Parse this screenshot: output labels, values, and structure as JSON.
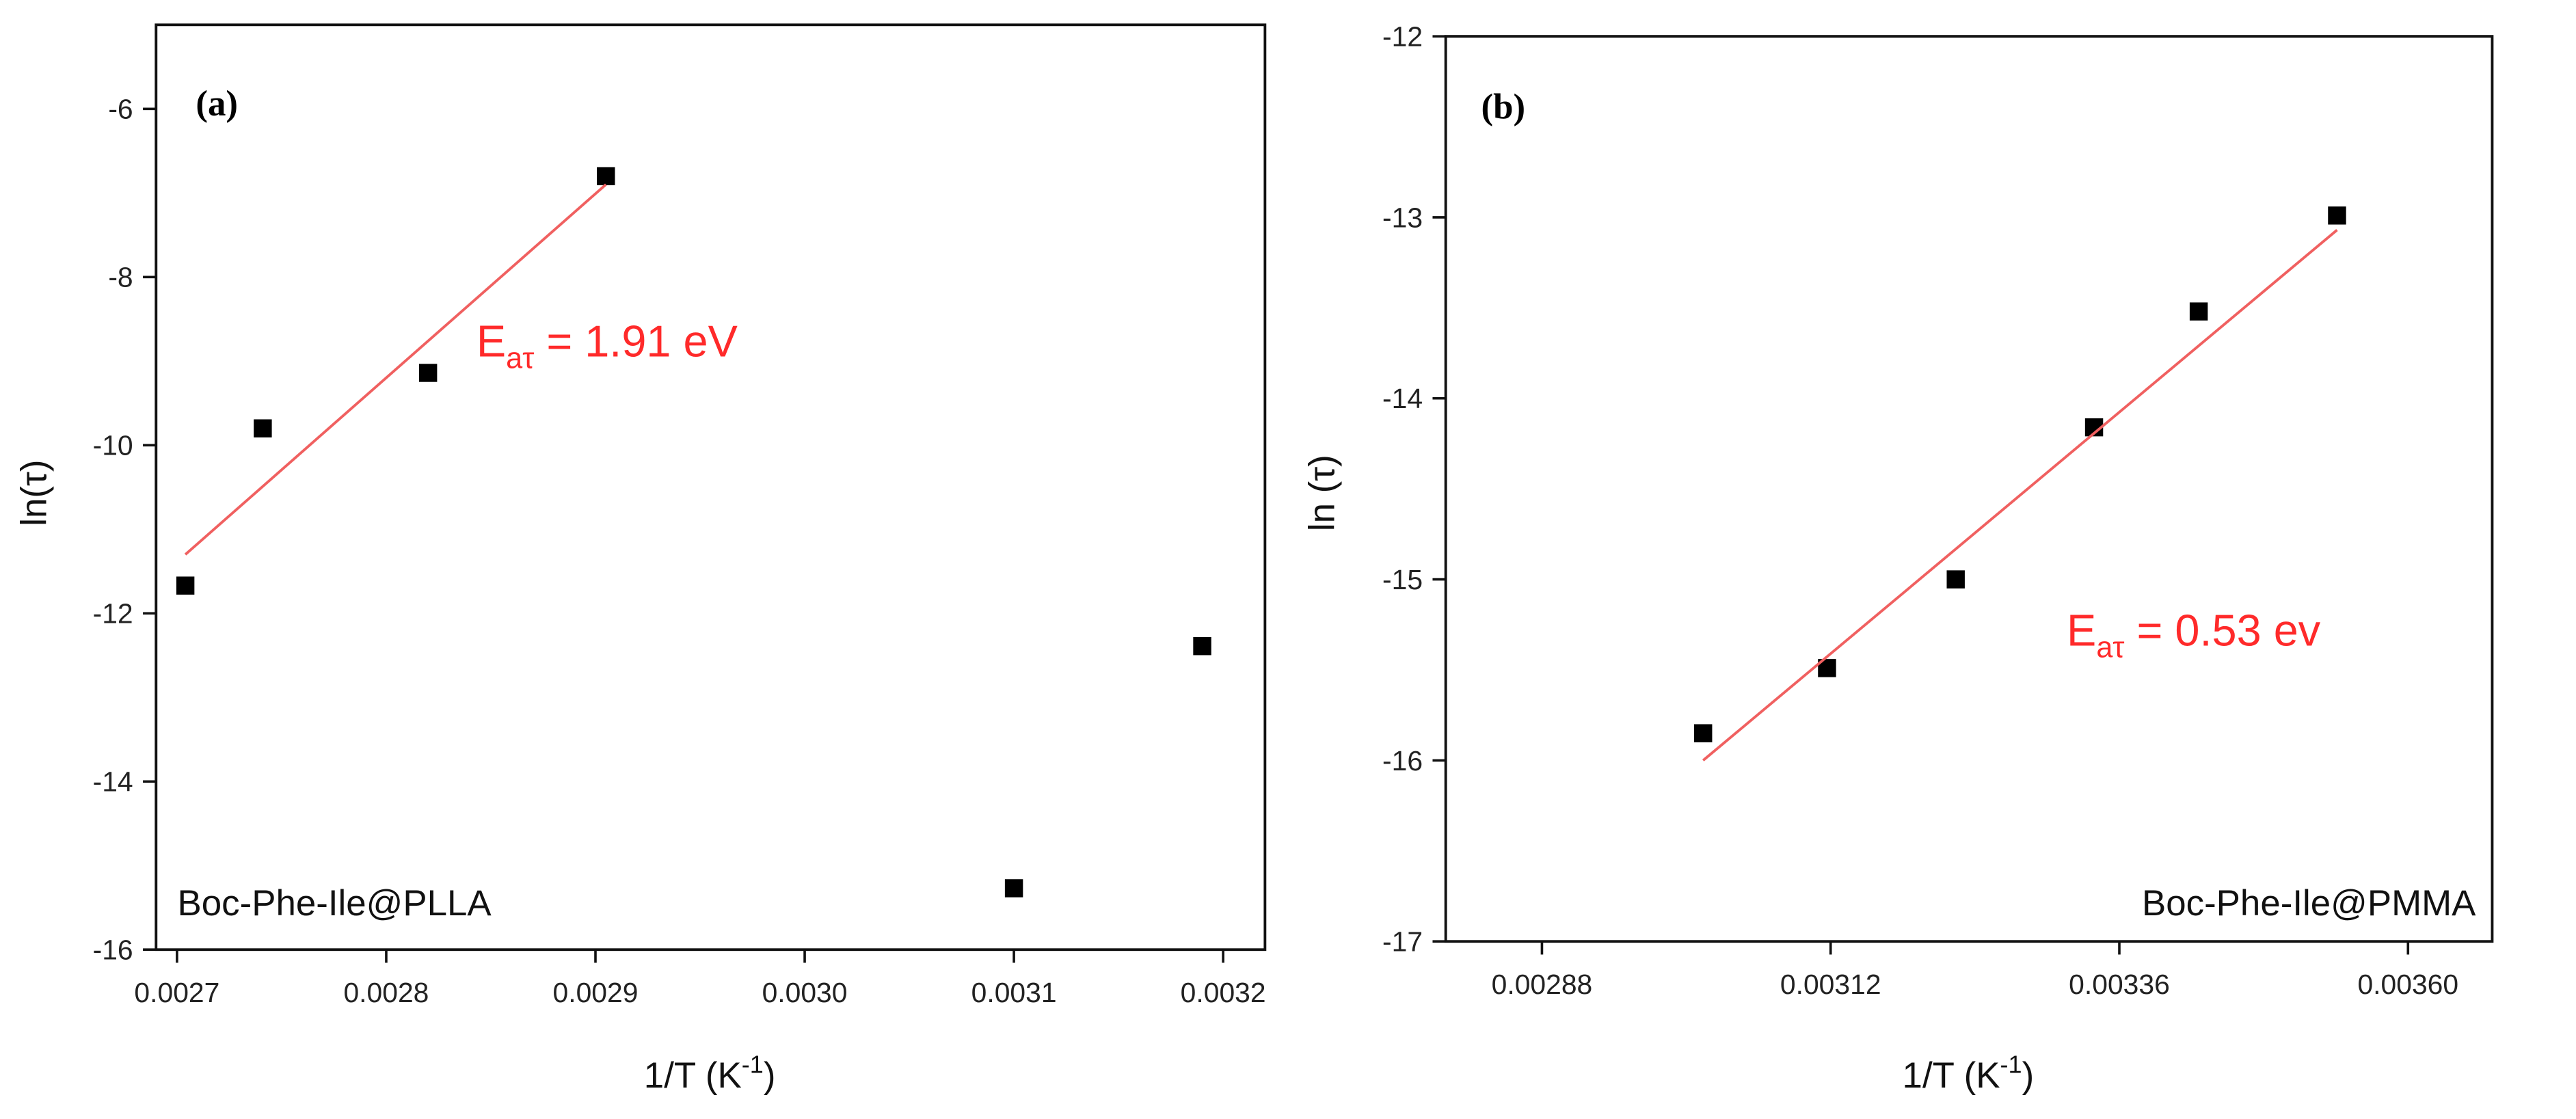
{
  "chart_data": [
    {
      "type": "scatter",
      "panel": "(a)",
      "note": "Boc-Phe-Ile@PLLA",
      "annotation": {
        "main": "E",
        "sub": "aτ",
        "rest": " = 1.91 eV"
      },
      "xlabel": {
        "main": "1/T (K",
        "sup": "-1",
        "end": ")"
      },
      "ylabel": "ln(τ)",
      "xlim": [
        0.00269,
        0.00322
      ],
      "ylim": [
        -16,
        -5
      ],
      "xticks": [
        0.0027,
        0.0028,
        0.0029,
        {
          "value": 0.003,
          "label": "0.0030"
        },
        0.0031,
        0.0032
      ],
      "yticks": [
        -16,
        -14,
        -12,
        -10,
        -8,
        -6
      ],
      "series": [
        {
          "mode": "markers",
          "marker": "square",
          "color": "#000000",
          "x": [
            0.002704,
            0.002741,
            0.00282,
            0.002905,
            0.0031,
            0.00319
          ],
          "values": [
            -11.67,
            -9.8,
            -9.14,
            -6.8,
            -15.27,
            -12.39
          ]
        },
        {
          "mode": "line",
          "color": "#f06060",
          "x": [
            0.002704,
            0.002905
          ],
          "values": [
            -11.3,
            -6.9
          ]
        }
      ]
    },
    {
      "type": "scatter",
      "panel": "(b)",
      "note": "Boc-Phe-Ile@PMMA",
      "annotation": {
        "main": "E",
        "sub": "aτ",
        "rest": " = 0.53 ev"
      },
      "xlabel": {
        "main": "1/T (K",
        "sup": "-1",
        "end": ")"
      },
      "ylabel": "ln (τ)",
      "xlim": [
        0.0028,
        0.00367
      ],
      "ylim": [
        -17,
        -12
      ],
      "xticks": [
        0.00288,
        0.00312,
        0.00336,
        {
          "value": 0.0036,
          "label": "0.00360"
        }
      ],
      "yticks": [
        -17,
        -16,
        -15,
        -14,
        -13,
        -12
      ],
      "series": [
        {
          "mode": "markers",
          "marker": "square",
          "color": "#000000",
          "x": [
            0.003014,
            0.003117,
            0.003224,
            0.003339,
            0.003426,
            0.003541
          ],
          "values": [
            -15.85,
            -15.49,
            -15.0,
            -14.16,
            -13.52,
            -12.99
          ]
        },
        {
          "mode": "line",
          "color": "#f06060",
          "x": [
            0.003014,
            0.003541
          ],
          "values": [
            -16.0,
            -13.07
          ]
        }
      ]
    }
  ]
}
